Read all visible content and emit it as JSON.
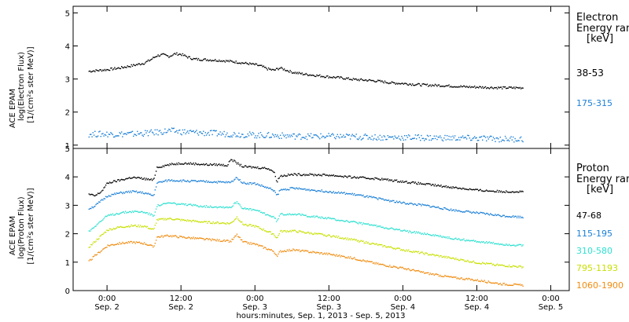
{
  "x_axis": {
    "label": "hours:minutes, Sep.  1, 2013 - Sep.  5, 2013",
    "ticks": [
      {
        "hours": 0,
        "time": "0:00",
        "date": "Sep. 2"
      },
      {
        "hours": 12,
        "time": "12:00",
        "date": "Sep. 2"
      },
      {
        "hours": 24,
        "time": "0:00",
        "date": "Sep. 3"
      },
      {
        "hours": 36,
        "time": "12:00",
        "date": "Sep. 3"
      },
      {
        "hours": 48,
        "time": "0:00",
        "date": "Sep. 4"
      },
      {
        "hours": 60,
        "time": "12:00",
        "date": "Sep. 4"
      },
      {
        "hours": 72,
        "time": "0:00",
        "date": "Sep. 5"
      }
    ]
  },
  "chart_data": [
    {
      "type": "scatter",
      "ylabel": [
        "ACE EPAM",
        "log(Electron Flux)",
        "[1/(cm²s ster MeV)]"
      ],
      "ylim": [
        0.9,
        5.2
      ],
      "yticks": [
        1,
        2,
        3,
        4,
        5
      ],
      "legend_title": [
        "Electron",
        "Energy range",
        "[keV]"
      ],
      "series": [
        {
          "name": "38-53",
          "color": "#000000",
          "x": [
            -3,
            0,
            2,
            4,
            6,
            7,
            8,
            9,
            10,
            11,
            12,
            13,
            14,
            16,
            18,
            20,
            22,
            24,
            25,
            26,
            27,
            28,
            30,
            32,
            34,
            36,
            38,
            40,
            42,
            44,
            46,
            48,
            50,
            52,
            54,
            56,
            58,
            60,
            62,
            64,
            66,
            67.5
          ],
          "y": [
            3.25,
            3.3,
            3.35,
            3.42,
            3.5,
            3.6,
            3.72,
            3.75,
            3.7,
            3.78,
            3.76,
            3.68,
            3.62,
            3.6,
            3.58,
            3.55,
            3.5,
            3.45,
            3.4,
            3.32,
            3.28,
            3.35,
            3.22,
            3.16,
            3.12,
            3.08,
            3.05,
            3.0,
            2.98,
            2.95,
            2.9,
            2.88,
            2.85,
            2.83,
            2.82,
            2.8,
            2.78,
            2.77,
            2.76,
            2.75,
            2.75,
            2.75
          ]
        },
        {
          "name": "175-315",
          "color": "#1a7fd6",
          "x": [
            -3,
            0,
            4,
            8,
            10,
            12,
            16,
            20,
            24,
            28,
            32,
            36,
            40,
            44,
            48,
            52,
            56,
            60,
            64,
            67.5
          ],
          "y": [
            1.35,
            1.35,
            1.35,
            1.4,
            1.45,
            1.42,
            1.38,
            1.35,
            1.32,
            1.3,
            1.28,
            1.28,
            1.27,
            1.25,
            1.25,
            1.24,
            1.23,
            1.22,
            1.2,
            1.2
          ]
        }
      ]
    },
    {
      "type": "scatter",
      "ylabel": [
        "ACE EPAM",
        "log(Proton Flux)",
        "[1/(cm²s ster MeV)]"
      ],
      "ylim": [
        0,
        5
      ],
      "yticks": [
        0,
        1,
        2,
        3,
        4,
        5
      ],
      "legend_title": [
        "Proton",
        "Energy range",
        "[keV]"
      ],
      "series": [
        {
          "name": "47-68",
          "color": "#000000",
          "x": [
            -3,
            -2,
            -1,
            0,
            2,
            4,
            6,
            7.5,
            8,
            10,
            12,
            14,
            16,
            18,
            19.5,
            20,
            21,
            22,
            24,
            26,
            27,
            27.5,
            28,
            30,
            32,
            36,
            40,
            44,
            48,
            52,
            56,
            60,
            64,
            67.5
          ],
          "y": [
            3.4,
            3.35,
            3.5,
            3.8,
            3.9,
            4.0,
            3.95,
            3.9,
            4.35,
            4.45,
            4.5,
            4.48,
            4.45,
            4.45,
            4.42,
            4.65,
            4.5,
            4.38,
            4.35,
            4.32,
            4.2,
            3.85,
            4.05,
            4.1,
            4.1,
            4.08,
            4.0,
            3.95,
            3.85,
            3.75,
            3.65,
            3.55,
            3.5,
            3.5
          ]
        },
        {
          "name": "115-195",
          "color": "#1a7fd6",
          "x": [
            -3,
            -2,
            0,
            2,
            4,
            6,
            7.5,
            8,
            10,
            12,
            16,
            20,
            21,
            22,
            24,
            27,
            27.5,
            28,
            30,
            36,
            40,
            44,
            48,
            52,
            56,
            60,
            64,
            67.5
          ],
          "y": [
            2.9,
            3.0,
            3.35,
            3.45,
            3.5,
            3.45,
            3.35,
            3.8,
            3.9,
            3.88,
            3.85,
            3.82,
            4.0,
            3.8,
            3.78,
            3.55,
            3.35,
            3.55,
            3.62,
            3.5,
            3.4,
            3.25,
            3.1,
            3.0,
            2.85,
            2.75,
            2.65,
            2.6
          ]
        },
        {
          "name": "310-580",
          "color": "#2de0d0",
          "x": [
            -3,
            -2,
            0,
            2,
            4,
            6,
            7.5,
            8,
            10,
            12,
            16,
            20,
            21,
            22,
            24,
            27,
            27.5,
            28,
            30,
            36,
            40,
            44,
            48,
            52,
            56,
            60,
            64,
            67.5
          ],
          "y": [
            2.1,
            2.3,
            2.65,
            2.75,
            2.8,
            2.78,
            2.65,
            3.0,
            3.1,
            3.05,
            2.98,
            2.95,
            3.15,
            2.9,
            2.85,
            2.6,
            2.45,
            2.7,
            2.72,
            2.55,
            2.42,
            2.28,
            2.12,
            2.0,
            1.85,
            1.75,
            1.65,
            1.6
          ]
        },
        {
          "name": "795-1193",
          "color": "#c8e000",
          "x": [
            -3,
            -2,
            0,
            2,
            4,
            6,
            7.5,
            8,
            10,
            12,
            16,
            20,
            21,
            22,
            24,
            27,
            27.5,
            28,
            30,
            36,
            40,
            44,
            48,
            52,
            56,
            60,
            64,
            67.5
          ],
          "y": [
            1.55,
            1.75,
            2.15,
            2.25,
            2.3,
            2.28,
            2.15,
            2.5,
            2.55,
            2.5,
            2.42,
            2.38,
            2.6,
            2.35,
            2.28,
            2.0,
            1.85,
            2.1,
            2.12,
            1.95,
            1.8,
            1.62,
            1.45,
            1.3,
            1.15,
            1.0,
            0.9,
            0.85
          ]
        },
        {
          "name": "1060-1900",
          "color": "#f08c10",
          "x": [
            -3,
            -2,
            0,
            2,
            4,
            6,
            7.5,
            8,
            10,
            12,
            16,
            20,
            21,
            22,
            24,
            27,
            27.5,
            28,
            30,
            36,
            40,
            44,
            48,
            52,
            56,
            60,
            64,
            67.5
          ],
          "y": [
            1.05,
            1.25,
            1.6,
            1.68,
            1.72,
            1.68,
            1.55,
            1.9,
            1.95,
            1.9,
            1.82,
            1.75,
            1.98,
            1.72,
            1.65,
            1.4,
            1.2,
            1.4,
            1.45,
            1.3,
            1.15,
            0.95,
            0.8,
            0.62,
            0.48,
            0.38,
            0.25,
            0.2
          ]
        }
      ]
    }
  ]
}
